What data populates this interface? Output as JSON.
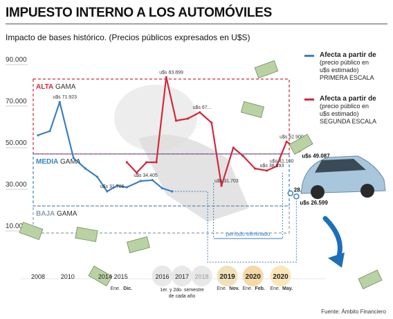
{
  "header": {
    "title": "IMPUESTO INTERNO A LOS AUTOMÓVILES",
    "subtitle": "Impacto de bases histórico. (Precios públicos expresados en U$S)"
  },
  "legend": [
    {
      "label": "Afecta a partir de",
      "lines": [
        "(precio público en",
        "u$s estimado)",
        "PRIMERA ESCALA"
      ],
      "color": "#3a7fc1"
    },
    {
      "label": "Afecta a partir de",
      "lines": [
        "(precio público en",
        "u$s estimado)",
        "SEGUNDA ESCALA"
      ],
      "color": "#d3283a"
    }
  ],
  "source": "Fuente: Ámbito Financiero",
  "chart_data": {
    "type": "line",
    "ylim": [
      0,
      90000
    ],
    "yticks": [
      10000,
      30000,
      50000,
      70000,
      90000
    ],
    "ytick_labels": [
      "10.000",
      "30.000",
      "50.000",
      "70.000",
      "90.000"
    ],
    "bands": [
      {
        "name": "ALTA",
        "suffix": "GAMA",
        "color": "#d3283a",
        "top": 83000,
        "bottom": 47000
      },
      {
        "name": "MEDIA",
        "suffix": "GAMA",
        "color": "#3a7fc1",
        "top": 47000,
        "bottom": 22000
      },
      {
        "name": "BAJA",
        "suffix": "GAMA",
        "color": "#8a9bb0",
        "top": 22000,
        "bottom": 9000
      }
    ],
    "period_label": "período eliminado",
    "series": [
      {
        "color": "#3a7fc1",
        "x": [
          0,
          0.6,
          1.1,
          1.8,
          2.4,
          3.0,
          3.5,
          4.0,
          4.5,
          5.2,
          5.8,
          6.3,
          6.8
        ],
        "y": [
          56000,
          58000,
          71923,
          45000,
          40000,
          36000,
          29000,
          31706,
          31000,
          34000,
          34405,
          30500,
          29000
        ]
      },
      {
        "color": "#d3283a",
        "x": [
          4.5,
          5.0,
          5.5,
          6.0,
          6.5,
          7.0,
          7.6,
          8.2,
          8.8,
          9.3,
          9.9,
          10.4,
          11.0,
          11.6,
          12.1,
          12.6
        ],
        "y": [
          43000,
          38000,
          43000,
          43000,
          83899,
          63000,
          64000,
          67000,
          62000,
          31703,
          50000,
          46000,
          40000,
          38993,
          41100,
          52900
        ]
      }
    ],
    "end_points": [
      {
        "x": 13.2,
        "y": 49087,
        "label": "u$s 49.087",
        "color": "#d3283a"
      },
      {
        "x": 12.8,
        "y": 28099,
        "label": "28.099",
        "color": "#3a7fc1"
      },
      {
        "x": 13.1,
        "y": 26599,
        "label": "u$s 26.599",
        "color": "#3a7fc1"
      }
    ],
    "annotations": [
      {
        "x": 1.1,
        "y": 71923,
        "text": "u$s 71.923"
      },
      {
        "x": 3.5,
        "y": 29000,
        "text": "u$s 31.706"
      },
      {
        "x": 5.2,
        "y": 34405,
        "text": "u$s 34.405"
      },
      {
        "x": 6.5,
        "y": 83899,
        "text": "u$s 83.899"
      },
      {
        "x": 8.2,
        "y": 67000,
        "text": "u$s 67..."
      },
      {
        "x": 9.3,
        "y": 31703,
        "text": "u$s 31.703"
      },
      {
        "x": 11.6,
        "y": 38993,
        "text": "u$s 38.993"
      },
      {
        "x": 12.1,
        "y": 41100,
        "text": "u$s 41.100"
      },
      {
        "x": 12.6,
        "y": 52900,
        "text": "u$s 52.900"
      }
    ],
    "timeline": [
      {
        "year": "2008",
        "x": 0.0
      },
      {
        "year": "2010",
        "x": 1.5
      },
      {
        "year": "2014",
        "x": 3.4
      },
      {
        "year": "2015",
        "x": 4.2,
        "sub": [
          "Ene.",
          "Dic."
        ]
      },
      {
        "year": "2016",
        "x": 6.3
      },
      {
        "year": "2017",
        "x": 7.3
      },
      {
        "year": "2018",
        "x": 8.3
      },
      {
        "year": "2019",
        "x": 9.6,
        "sub": [
          "Ene.",
          "Nov."
        ]
      },
      {
        "year": "2020",
        "x": 10.9,
        "sub": [
          "Ene.",
          "Feb."
        ]
      },
      {
        "year": "2020",
        "x": 12.3,
        "sub": [
          "Ene.",
          "May."
        ]
      }
    ],
    "timeline_note": [
      "1er. y 2do. semestre",
      "de cada año"
    ]
  }
}
